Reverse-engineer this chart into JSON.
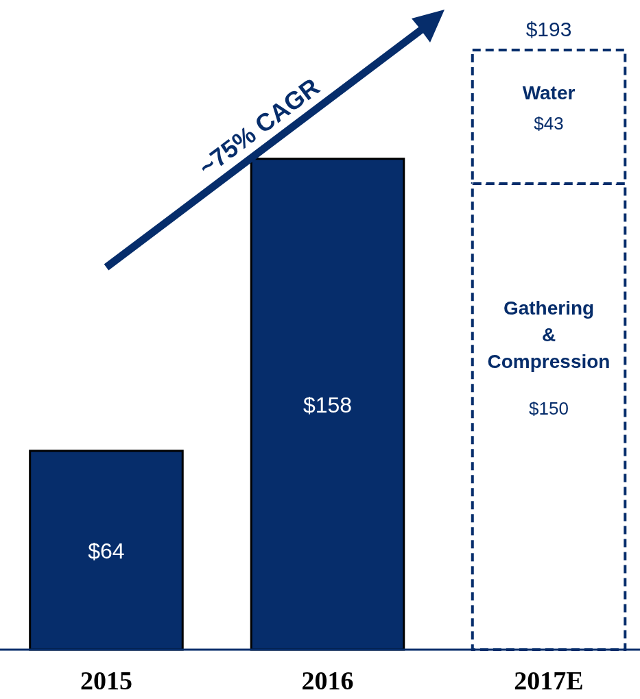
{
  "chart_data": {
    "type": "bar",
    "stacked": true,
    "categories": [
      "2015",
      "2016",
      "2017E"
    ],
    "series": [
      {
        "color": "#062d6b",
        "values": [
          64,
          158,
          null
        ],
        "value_labels": [
          "$64",
          "$158",
          null
        ]
      },
      {
        "name": "Gathering & Compression",
        "color": "#062d6b",
        "line_style": "dashed",
        "values": [
          null,
          null,
          150
        ],
        "value_labels": [
          null,
          null,
          "$150"
        ]
      },
      {
        "name": "Water",
        "color": "#062d6b",
        "line_style": "dashed",
        "values": [
          null,
          null,
          43
        ],
        "value_labels": [
          null,
          null,
          "$43"
        ]
      }
    ],
    "totals": [
      null,
      null,
      "$193"
    ],
    "annotations": [
      "~75% CAGR"
    ]
  }
}
